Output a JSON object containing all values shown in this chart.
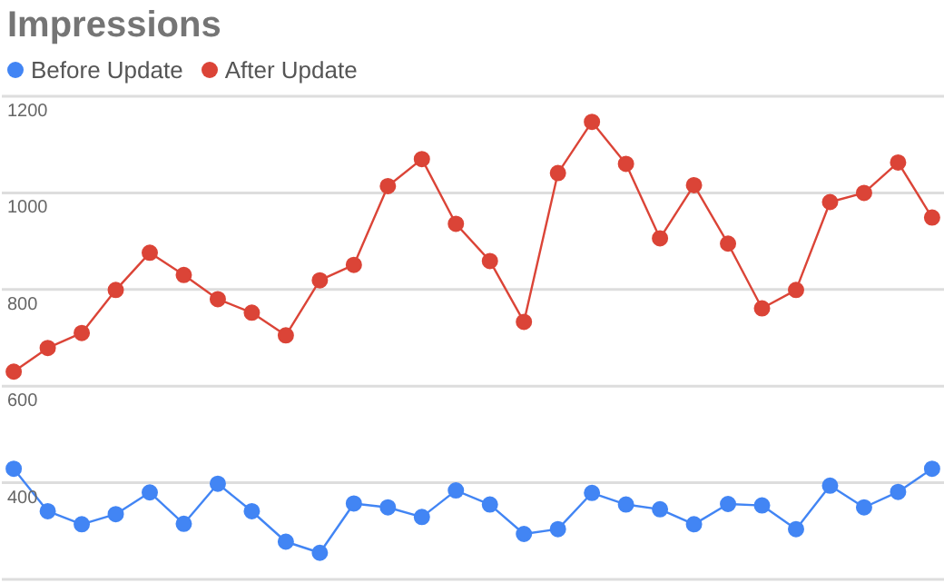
{
  "chart_data": {
    "type": "line",
    "title": "Impressions",
    "categories": [
      null,
      null,
      null,
      null,
      null,
      null,
      null,
      null,
      null,
      null,
      null,
      null,
      null,
      null,
      null,
      null,
      null,
      null,
      null,
      null,
      null,
      null,
      null,
      null,
      null,
      null,
      null,
      null
    ],
    "series": [
      {
        "name": "Before Update",
        "color": "#4285f4",
        "values": [
          429,
          341,
          314,
          335,
          380,
          315,
          398,
          341,
          278,
          255,
          357,
          349,
          329,
          384,
          355,
          294,
          304,
          379,
          355,
          345,
          314,
          356,
          353,
          304,
          394,
          349,
          381,
          429
        ]
      },
      {
        "name": "After Update",
        "color": "#db4437",
        "values": [
          630,
          679,
          710,
          799,
          876,
          830,
          780,
          752,
          705,
          819,
          851,
          1014,
          1070,
          936,
          859,
          733,
          1041,
          1147,
          1060,
          906,
          1016,
          895,
          761,
          799,
          981,
          1000,
          1063,
          949
        ]
      }
    ],
    "ylim": [
      200,
      1200
    ],
    "yticks": [
      400,
      600,
      800,
      1000,
      1200
    ],
    "grid": "y",
    "legend": "top left",
    "marker": "circle",
    "line_style": "solid"
  }
}
